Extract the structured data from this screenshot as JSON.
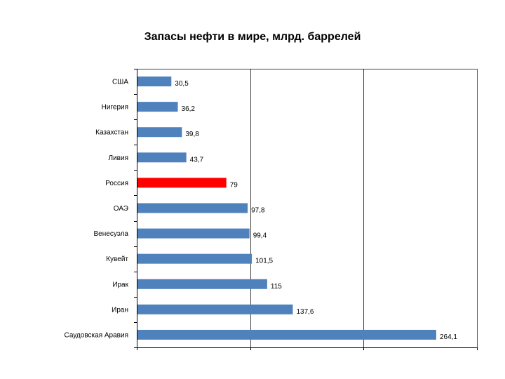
{
  "chart_data": {
    "type": "bar",
    "orientation": "horizontal",
    "title": "Запасы нефти в мире, млрд. баррелей",
    "categories": [
      "США",
      "Нигерия",
      "Казахстан",
      "Ливия",
      "Россия",
      "ОАЭ",
      "Венесуэла",
      "Кувейт",
      "Ирак",
      "Иран",
      "Саудовская Аравия"
    ],
    "values": [
      30.5,
      36.2,
      39.8,
      43.7,
      79,
      97.8,
      99.4,
      101.5,
      115,
      137.6,
      264.1
    ],
    "value_labels": [
      "30,5",
      "36,2",
      "39,8",
      "43,7",
      "79",
      "97,8",
      "99,4",
      "101,5",
      "115",
      "137,6",
      "264,1"
    ],
    "xlim": [
      0,
      300
    ],
    "x_gridlines": [
      100,
      200,
      300
    ],
    "grid": true,
    "show_axis_ticks_labels": false,
    "colors": {
      "bar": "#4f81bd",
      "highlight": "#ff0000",
      "grid": "#000000"
    },
    "highlight_category": "Россия"
  }
}
